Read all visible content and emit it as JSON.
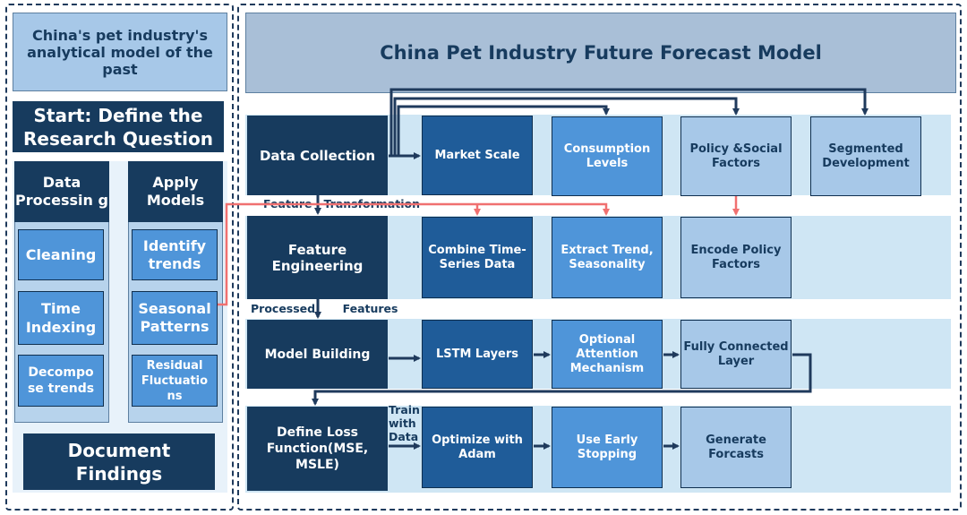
{
  "left": {
    "title": "China's pet industry's analytical model of the past",
    "start": "Start: Define the Research Question",
    "data_processing": {
      "header": "Data Processin g",
      "items": [
        "Cleaning",
        "Time Indexing",
        "Decompo se trends"
      ]
    },
    "apply_models": {
      "header": "Apply Models",
      "items": [
        "Identify trends",
        "Seasonal Patterns",
        "Residual Fluctuatio ns"
      ]
    },
    "document": "Document Findings"
  },
  "right": {
    "title": "China Pet Industry Future Forecast Model",
    "row1": {
      "main": "Data Collection",
      "boxes": [
        "Market Scale",
        "Consumption Levels",
        "Policy &Social Factors",
        "Segmented Development"
      ]
    },
    "label1": "Feature   Transformation",
    "row2": {
      "main": "Feature Engineering",
      "boxes": [
        "Combine Time-Series Data",
        "Extract Trend, Seasonality",
        "Encode Policy Factors"
      ]
    },
    "label2": "Processed       Features",
    "row3": {
      "main": "Model Building",
      "boxes": [
        "LSTM Layers",
        "Optional Attention Mechanism",
        "Fully Connected Layer"
      ]
    },
    "row4": {
      "main": "Define Loss Function(MSE, MSLE)",
      "train_label": "Train with Data",
      "boxes": [
        "Optimize with Adam",
        "Use Early Stopping",
        "Generate Forcasts"
      ]
    }
  },
  "colors": {
    "dark": "#173b5e",
    "mid": "#1f5c99",
    "light": "#4f95d9",
    "pale": "#a7c8e8",
    "band": "#cfe6f4",
    "red": "#f07070"
  }
}
